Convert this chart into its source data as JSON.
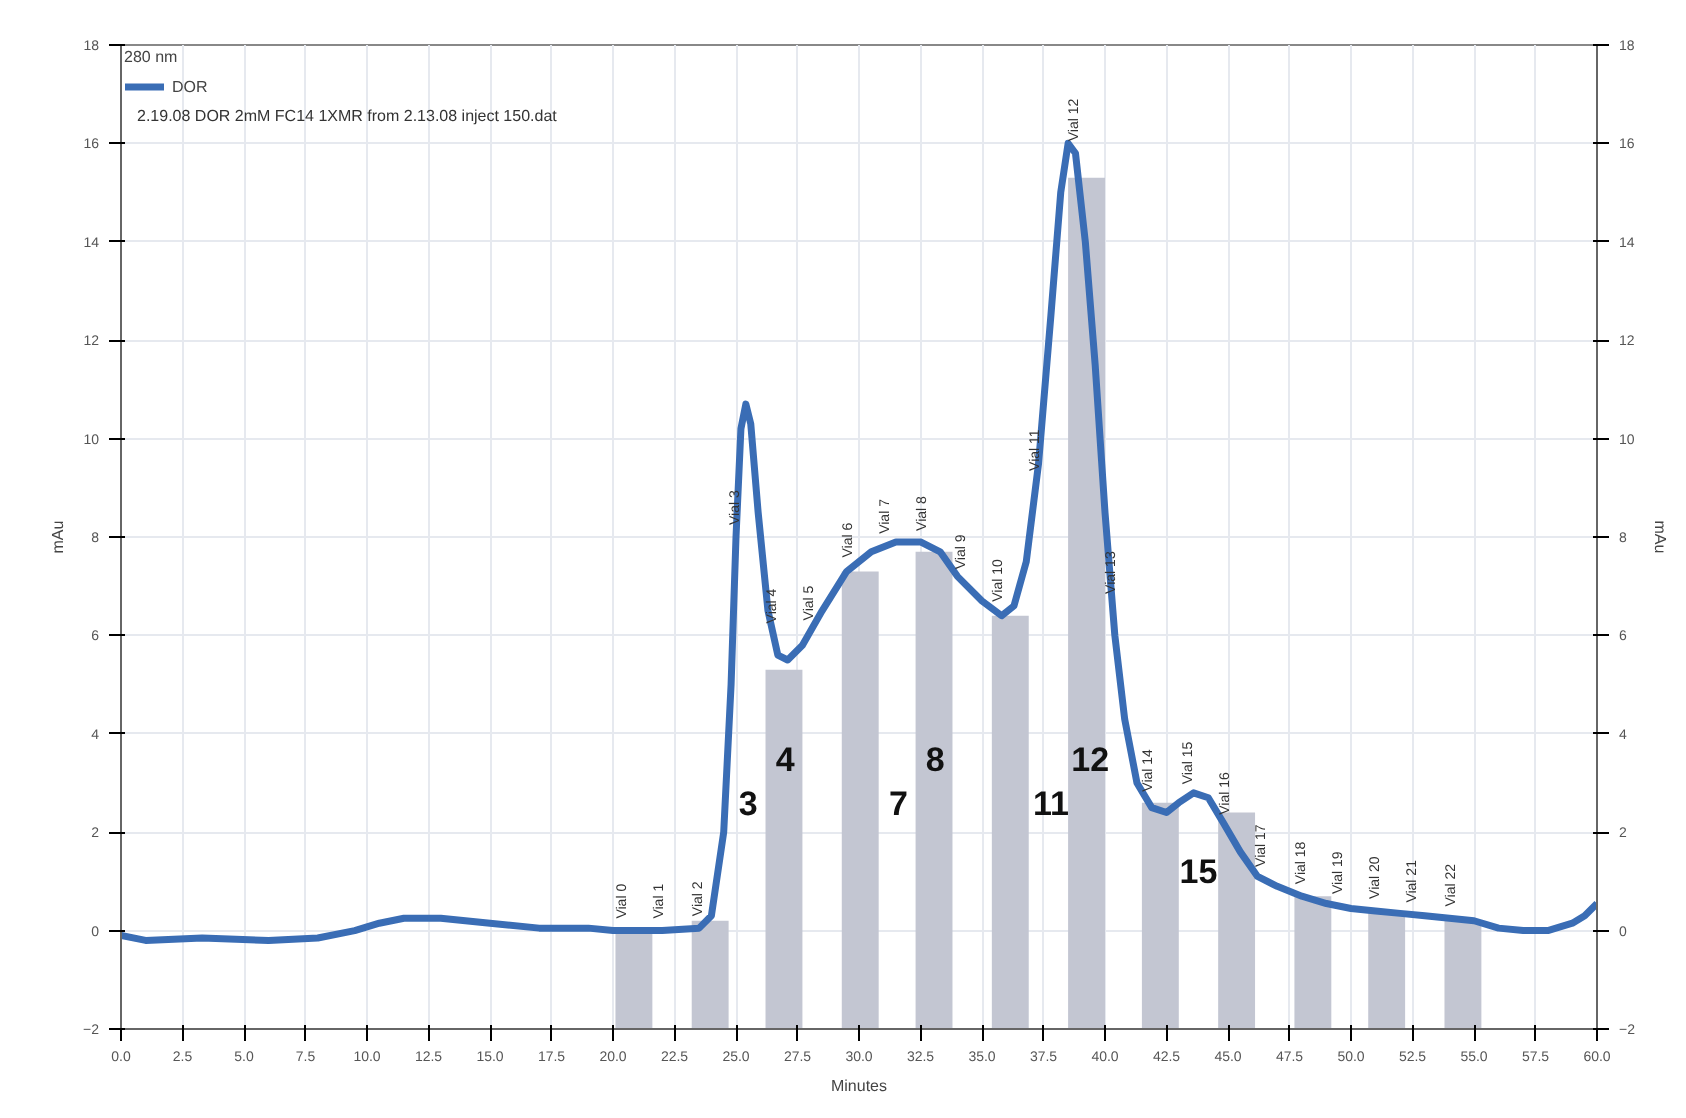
{
  "chart_data": {
    "type": "line",
    "legend_title": "280 nm",
    "xlabel": "Minutes",
    "ylabel": "mAu",
    "y2label": "mAu",
    "xlim": [
      0,
      60
    ],
    "ylim": [
      -2,
      18
    ],
    "y2lim": [
      -2,
      18
    ],
    "xticks": [
      {
        "value": 0,
        "label": "0.0"
      },
      {
        "value": 2.5,
        "label": "2.5"
      },
      {
        "value": 5,
        "label": "5.0"
      },
      {
        "value": 7.5,
        "label": "7.5"
      },
      {
        "value": 10,
        "label": "10.0"
      },
      {
        "value": 12.5,
        "label": "12.5"
      },
      {
        "value": 15,
        "label": "15.0"
      },
      {
        "value": 17.5,
        "label": "17.5"
      },
      {
        "value": 20,
        "label": "20.0"
      },
      {
        "value": 22.5,
        "label": "22.5"
      },
      {
        "value": 25,
        "label": "25.0"
      },
      {
        "value": 27.5,
        "label": "27.5"
      },
      {
        "value": 30,
        "label": "30.0"
      },
      {
        "value": 32.5,
        "label": "32.5"
      },
      {
        "value": 35,
        "label": "35.0"
      },
      {
        "value": 37.5,
        "label": "37.5"
      },
      {
        "value": 40,
        "label": "40.0"
      },
      {
        "value": 42.5,
        "label": "42.5"
      },
      {
        "value": 45,
        "label": "45.0"
      },
      {
        "value": 47.5,
        "label": "47.5"
      },
      {
        "value": 50,
        "label": "50.0"
      },
      {
        "value": 52.5,
        "label": "52.5"
      },
      {
        "value": 55,
        "label": "55.0"
      },
      {
        "value": 57.5,
        "label": "57.5"
      },
      {
        "value": 60,
        "label": "60.0"
      }
    ],
    "yticks": [
      -2,
      0,
      2,
      4,
      6,
      8,
      10,
      12,
      14,
      16,
      18
    ],
    "y2ticks": [
      -2,
      0,
      2,
      4,
      6,
      8,
      10,
      12,
      14,
      16,
      18
    ],
    "grid": true,
    "legend": "top left",
    "marker": "none",
    "line_style": "solid",
    "series": [
      {
        "type": "bar",
        "color": "#c3c6d2",
        "x": [
          20.85,
          23.95,
          26.95,
          30.05,
          33.05,
          36.15,
          39.25,
          42.25,
          45.35,
          48.45,
          51.45,
          54.55
        ],
        "base": [
          -2,
          -2,
          -2,
          -2,
          -2,
          -2,
          -2,
          -2,
          -2,
          -2,
          -2,
          -2
        ],
        "values": [
          2.0,
          2.2,
          7.3,
          9.3,
          9.7,
          8.4,
          17.3,
          4.6,
          4.4,
          2.7,
          2.4,
          2.2
        ]
      },
      {
        "name": "DOR",
        "color": "#3a6db5",
        "x": [
          0,
          1,
          3.3,
          6,
          8,
          9.5,
          10.5,
          11.5,
          13,
          15,
          17,
          19,
          20,
          22,
          23.5,
          24,
          24.5,
          24.8,
          25.0,
          25.2,
          25.4,
          25.6,
          25.9,
          26.3,
          26.7,
          27.1,
          27.7,
          28.5,
          29.5,
          30.5,
          31.5,
          32.5,
          33.3,
          34,
          35,
          35.8,
          36.3,
          36.8,
          37.3,
          37.8,
          38.2,
          38.5,
          38.8,
          39.2,
          39.6,
          40.0,
          40.4,
          40.8,
          41.3,
          41.9,
          42.5,
          43.0,
          43.6,
          44.2,
          44.8,
          45.5,
          46.2,
          47,
          48,
          49,
          50,
          51,
          52,
          53,
          54,
          55,
          56,
          57,
          58,
          59,
          59.5,
          60
        ],
        "values": [
          -0.1,
          -0.2,
          -0.15,
          -0.2,
          -0.15,
          0.0,
          0.15,
          0.25,
          0.25,
          0.15,
          0.05,
          0.05,
          0.0,
          0.0,
          0.05,
          0.3,
          2,
          5,
          8,
          10.2,
          10.7,
          10.3,
          8.5,
          6.5,
          5.6,
          5.5,
          5.8,
          6.5,
          7.3,
          7.7,
          7.9,
          7.9,
          7.7,
          7.2,
          6.7,
          6.4,
          6.6,
          7.5,
          9.5,
          12.5,
          15.0,
          16.0,
          15.8,
          14,
          11.5,
          8.5,
          6,
          4.3,
          3.0,
          2.5,
          2.4,
          2.6,
          2.8,
          2.7,
          2.2,
          1.6,
          1.1,
          0.9,
          0.7,
          0.55,
          0.45,
          0.4,
          0.35,
          0.3,
          0.25,
          0.2,
          0.05,
          0.0,
          0.0,
          0.15,
          0.3,
          0.55
        ]
      }
    ],
    "annotations": [
      "2.19.08 DOR 2mM FC14 1XMR from 2.13.08 inject 150.dat",
      {
        "text": "Vial 0",
        "x": 20.4,
        "y": 0.0
      },
      {
        "text": "Vial 1",
        "x": 21.9,
        "y": 0.0
      },
      {
        "text": "Vial 2",
        "x": 23.5,
        "y": 0.05
      },
      {
        "text": "Vial 3",
        "x": 25.0,
        "y": 8
      },
      {
        "text": "Vial 4",
        "x": 26.5,
        "y": 6.0
      },
      {
        "text": "Vial 5",
        "x": 28.0,
        "y": 6.06
      },
      {
        "text": "Vial 6",
        "x": 29.6,
        "y": 7.34
      },
      {
        "text": "Vial 7",
        "x": 31.1,
        "y": 7.82
      },
      {
        "text": "Vial 8",
        "x": 32.6,
        "y": 7.88
      },
      {
        "text": "Vial 9",
        "x": 34.2,
        "y": 7.1
      },
      {
        "text": "Vial 10",
        "x": 35.7,
        "y": 6.44
      },
      {
        "text": "Vial 11",
        "x": 37.2,
        "y": 9.1
      },
      {
        "text": "Vial 12",
        "x": 38.8,
        "y": 15.8
      },
      {
        "text": "Vial 13",
        "x": 40.3,
        "y": 6.6
      },
      {
        "text": "Vial 14",
        "x": 41.8,
        "y": 2.58
      },
      {
        "text": "Vial 15",
        "x": 43.4,
        "y": 2.73
      },
      {
        "text": "Vial 16",
        "x": 44.9,
        "y": 2.11
      },
      {
        "text": "Vial 17",
        "x": 46.4,
        "y": 1.05
      },
      {
        "text": "Vial 18",
        "x": 48.0,
        "y": 0.7
      },
      {
        "text": "Vial 19",
        "x": 49.5,
        "y": 0.5
      },
      {
        "text": "Vial 20",
        "x": 51.0,
        "y": 0.4
      },
      {
        "text": "Vial 21",
        "x": 52.5,
        "y": 0.325
      },
      {
        "text": "Vial 22",
        "x": 54.1,
        "y": 0.245
      },
      "3",
      "4",
      "7",
      "8",
      "11",
      "12",
      "15"
    ]
  }
}
